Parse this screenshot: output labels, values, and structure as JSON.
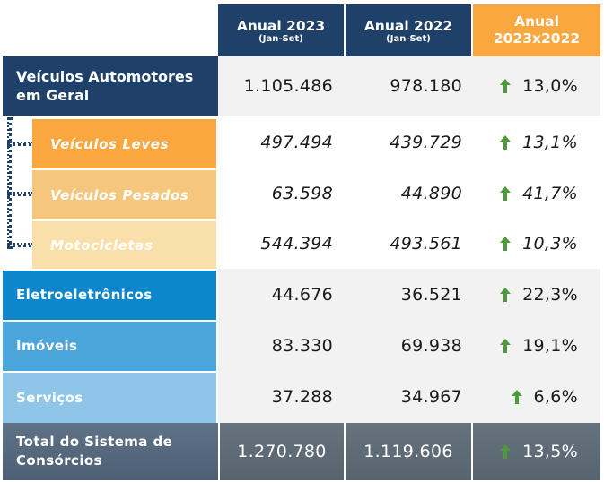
{
  "header": {
    "col1_title": "Anual 2023",
    "col1_sub": "(Jan-Set)",
    "col2_title": "Anual 2022",
    "col2_sub": "(Jan-Set)",
    "col3_line1": "Anual",
    "col3_line2": "2023x2022"
  },
  "rows": [
    {
      "label": "Veículos Automotores em Geral",
      "v2023": "1.105.486",
      "v2022": "978.180",
      "var": "13,0%",
      "trend": "up"
    },
    {
      "label": "Veículos Leves",
      "v2023": "497.494",
      "v2022": "439.729",
      "var": "13,1%",
      "trend": "up"
    },
    {
      "label": "Veículos Pesados",
      "v2023": "63.598",
      "v2022": "44.890",
      "var": "41,7%",
      "trend": "up"
    },
    {
      "label": "Motocicletas",
      "v2023": "544.394",
      "v2022": "493.561",
      "var": "10,3%",
      "trend": "up"
    },
    {
      "label": "Eletroeletrônicos",
      "v2023": "44.676",
      "v2022": "36.521",
      "var": "22,3%",
      "trend": "up"
    },
    {
      "label": "Imóveis",
      "v2023": "83.330",
      "v2022": "69.938",
      "var": "19,1%",
      "trend": "up"
    },
    {
      "label": "Serviços",
      "v2023": "37.288",
      "v2022": "34.967",
      "var": "6,6%",
      "trend": "up"
    },
    {
      "label": "Total do Sistema de Consórcios",
      "v2023": "1.270.780",
      "v2022": "1.119.606",
      "var": "13,5%",
      "trend": "up"
    }
  ],
  "colors": {
    "navy": "#1e4069",
    "orange": "#f9a73e",
    "light_orange": "#f5c77e",
    "pale_orange": "#f9dfa9",
    "blue_eletro": "#0e86cc",
    "blue_imoveis": "#4aa6da",
    "blue_servicos": "#8fc5e8",
    "total_slate": "#607080",
    "arrow_green": "#4b9b3a"
  }
}
